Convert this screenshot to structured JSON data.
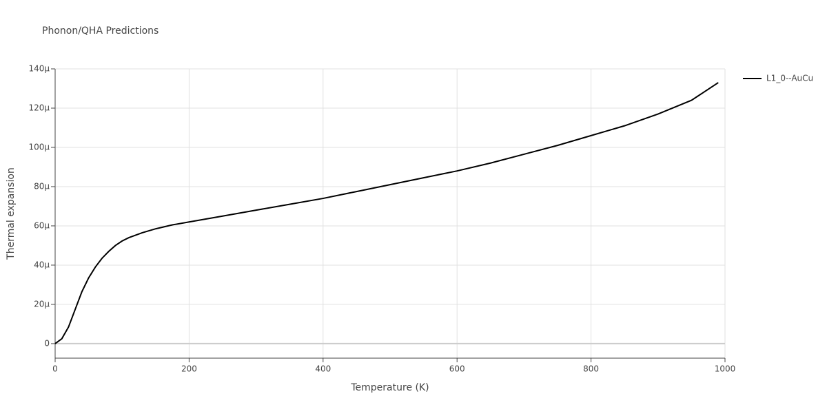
{
  "chart_data": {
    "type": "line",
    "title": "Phonon/QHA Predictions",
    "x_label": "Temperature (K)",
    "y_label": "Thermal expansion",
    "x": [
      0,
      10,
      20,
      30,
      40,
      50,
      60,
      70,
      80,
      90,
      100,
      110,
      130,
      150,
      175,
      200,
      250,
      300,
      350,
      400,
      450,
      500,
      550,
      600,
      650,
      700,
      750,
      800,
      850,
      900,
      950,
      990
    ],
    "series": [
      {
        "name": "L1_0--AuCu",
        "color": "#000000",
        "values": [
          0,
          2.5e-06,
          8.5e-06,
          1.75e-05,
          2.65e-05,
          3.35e-05,
          3.9e-05,
          4.35e-05,
          4.7e-05,
          5e-05,
          5.23e-05,
          5.4e-05,
          5.65e-05,
          5.85e-05,
          6.05e-05,
          6.2e-05,
          6.5e-05,
          6.8e-05,
          7.1e-05,
          7.4e-05,
          7.75e-05,
          8.1e-05,
          8.45e-05,
          8.8e-05,
          9.2e-05,
          9.65e-05,
          0.000101,
          0.000106,
          0.000111,
          0.000117,
          0.000124,
          0.000133
        ]
      }
    ],
    "xlim": [
      0,
      1000
    ],
    "xticks": [
      0,
      200,
      400,
      600,
      800,
      1000
    ],
    "ylim": [
      -7.4e-06,
      0.00014
    ],
    "yticks": [
      0,
      {
        "value": 2e-05,
        "label": "20μ"
      },
      {
        "value": 4e-05,
        "label": "40μ"
      },
      {
        "value": 6e-05,
        "label": "60μ"
      },
      {
        "value": 8e-05,
        "label": "80μ"
      },
      {
        "value": 0.0001,
        "label": "100μ"
      },
      {
        "value": 0.00012,
        "label": "120μ"
      },
      {
        "value": 0.00014,
        "label": "140μ"
      }
    ],
    "grid": true,
    "legend": "top-right"
  }
}
